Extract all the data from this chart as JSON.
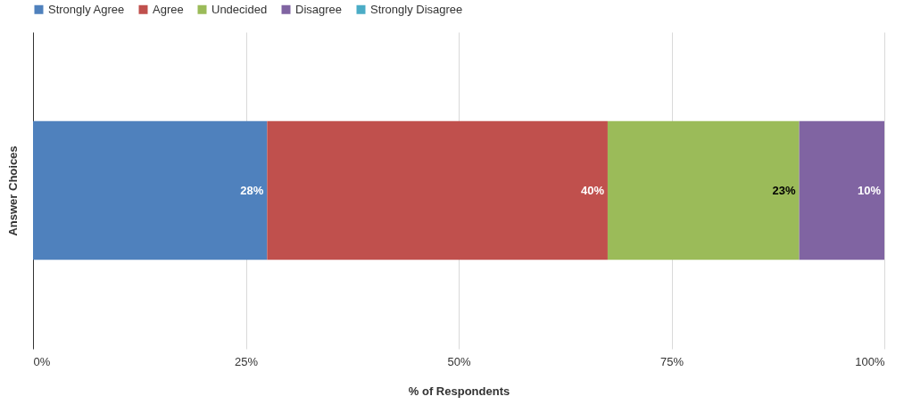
{
  "chart_data": {
    "type": "bar",
    "orientation": "horizontal",
    "stacked": true,
    "xlabel": "% of Respondents",
    "ylabel": "Answer Choices",
    "categories": [
      null
    ],
    "series": [
      {
        "name": "Strongly Agree",
        "color": "#4f81bd",
        "values": [
          27.5
        ],
        "value_labels": [
          "28%"
        ]
      },
      {
        "name": "Agree",
        "color": "#c0504d",
        "values": [
          40
        ],
        "value_labels": [
          "40%"
        ]
      },
      {
        "name": "Undecided",
        "color": "#9bbb59",
        "values": [
          22.5
        ],
        "value_labels": [
          "23%"
        ]
      },
      {
        "name": "Disagree",
        "color": "#8064a2",
        "values": [
          10
        ],
        "value_labels": [
          "10%"
        ]
      },
      {
        "name": "Strongly Disagree",
        "color": "#4bacc6",
        "values": [
          0
        ],
        "value_labels": [
          null
        ]
      }
    ],
    "xlim": [
      0,
      100
    ],
    "xticks": [
      {
        "value": 0,
        "label": "0%"
      },
      {
        "value": 25,
        "label": "25%"
      },
      {
        "value": 50,
        "label": "50%"
      },
      {
        "value": 75,
        "label": "75%"
      },
      {
        "value": 100,
        "label": "100%"
      }
    ],
    "grid": "x",
    "legend": "top"
  }
}
